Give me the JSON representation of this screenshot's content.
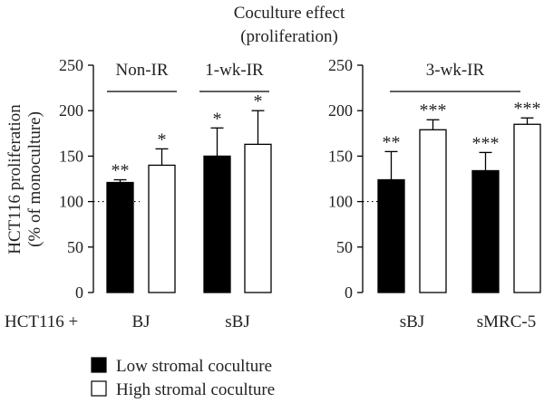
{
  "chart_data": {
    "type": "bar",
    "title": "Coculture effect",
    "subtitle": "(proliferation)",
    "ylabel": "HCT116 proliferation",
    "ylabel2": "(% of monoculture)",
    "x_prefix": "HCT116 +",
    "ylim": [
      0,
      250
    ],
    "yticks": [
      "0",
      "50",
      "100",
      "150",
      "200",
      "250"
    ],
    "yticks_num": [
      0,
      50,
      100,
      150,
      200,
      250
    ],
    "reference_line": 100,
    "grid": false,
    "legend_position": "bottom-left",
    "series": [
      {
        "name": "Low stromal coculture",
        "color": "#000000"
      },
      {
        "name": "High stromal coculture",
        "color": "#ffffff"
      }
    ],
    "panels": [
      {
        "groups": [
          {
            "header": "Non-IR",
            "category": "BJ",
            "bars": [
              {
                "value": 121,
                "error": 3,
                "sig": "**"
              },
              {
                "value": 140,
                "error": 18,
                "sig": "*"
              }
            ]
          },
          {
            "header": "1-wk-IR",
            "category": "sBJ",
            "bars": [
              {
                "value": 150,
                "error": 31,
                "sig": "*"
              },
              {
                "value": 163,
                "error": 37,
                "sig": "*"
              }
            ]
          }
        ]
      },
      {
        "header": "3-wk-IR",
        "groups": [
          {
            "category": "sBJ",
            "bars": [
              {
                "value": 124,
                "error": 31,
                "sig": "**"
              },
              {
                "value": 179,
                "error": 11,
                "sig": "***"
              }
            ]
          },
          {
            "category": "sMRC-5",
            "bars": [
              {
                "value": 134,
                "error": 20,
                "sig": "***"
              },
              {
                "value": 185,
                "error": 7,
                "sig": "***"
              }
            ]
          }
        ]
      }
    ]
  }
}
